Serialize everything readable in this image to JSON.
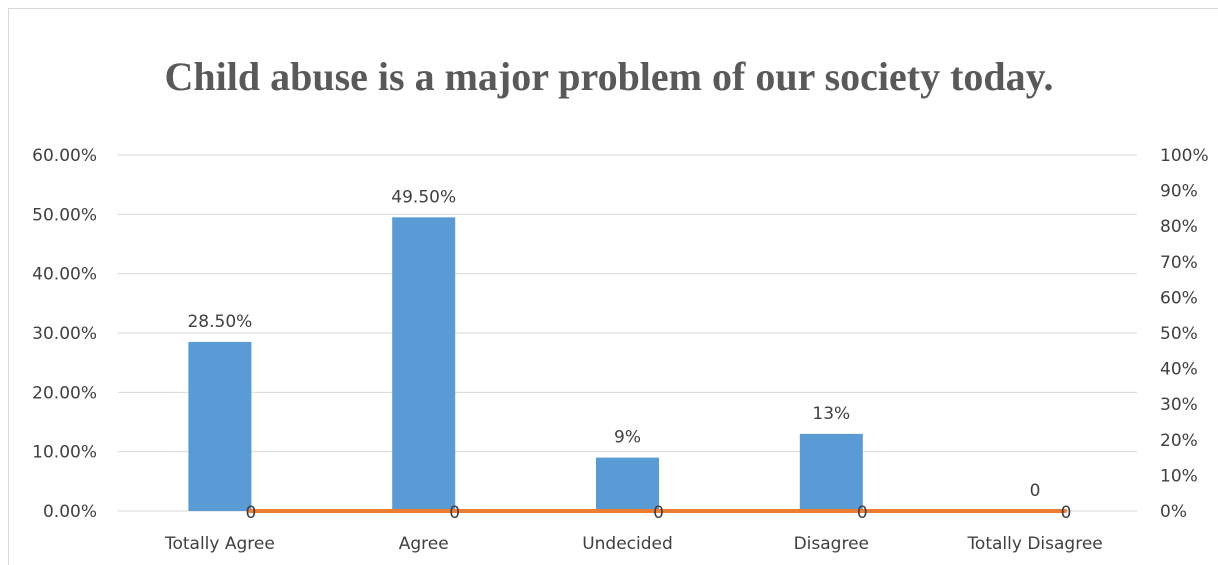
{
  "chart_data": {
    "type": "bar",
    "title": "Child abuse is a major problem of our society today.",
    "categories": [
      "Totally Agree",
      "Agree",
      "Undecided",
      "Disagree",
      "Totally Disagree"
    ],
    "series": [
      {
        "kind": "bar",
        "axis": "left",
        "values": [
          28.5,
          49.5,
          9,
          13,
          0
        ],
        "labels": [
          "28.50%",
          "49.50%",
          "9%",
          "13%",
          "0"
        ]
      },
      {
        "kind": "line",
        "axis": "right",
        "values": [
          0,
          0,
          0,
          0,
          0
        ],
        "labels": [
          "0",
          "0",
          "0",
          "0",
          "0"
        ]
      }
    ],
    "ylim": [
      0,
      60
    ],
    "yticks": [
      "0.00%",
      "10.00%",
      "20.00%",
      "30.00%",
      "40.00%",
      "50.00%",
      "60.00%"
    ],
    "y2lim": [
      0,
      100
    ],
    "y2ticks": [
      "0%",
      "10%",
      "20%",
      "30%",
      "40%",
      "50%",
      "60%",
      "70%",
      "80%",
      "90%",
      "100%"
    ],
    "grid": true,
    "colors": {
      "bar": "#5b9bd5",
      "line": "#ed7d31",
      "grid": "#d9d9d9",
      "text": "#404040",
      "title": "#595959"
    }
  }
}
